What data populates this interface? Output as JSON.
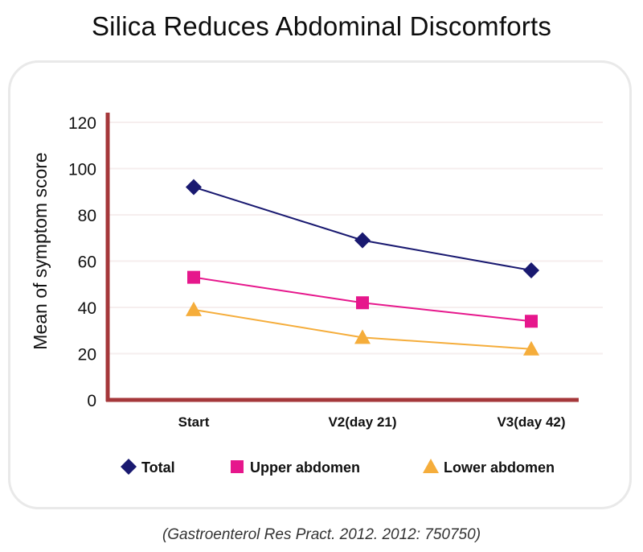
{
  "title": "Silica Reduces Abdominal Discomforts",
  "source": "(Gastroenterol Res Pract. 2012. 2012: 750750)",
  "chart_data": {
    "type": "line",
    "title": "Silica Reduces Abdominal Discomforts",
    "xlabel": "",
    "ylabel": "Mean of symptom score",
    "categories": [
      "Start",
      "V2(day 21)",
      "V3(day 42)"
    ],
    "ylim": [
      0,
      120
    ],
    "yticks": [
      0,
      20,
      40,
      60,
      80,
      100,
      120
    ],
    "grid": true,
    "legend": "bottom",
    "axis_color": "#a5373a",
    "series": [
      {
        "name": "Total",
        "values": [
          92,
          69,
          56
        ],
        "color": "#191970",
        "marker": "diamond"
      },
      {
        "name": "Upper abdomen",
        "values": [
          53,
          42,
          34
        ],
        "color": "#e6178c",
        "marker": "square"
      },
      {
        "name": "Lower abdomen",
        "values": [
          39,
          27,
          22
        ],
        "color": "#f5ad3b",
        "marker": "triangle"
      }
    ]
  }
}
